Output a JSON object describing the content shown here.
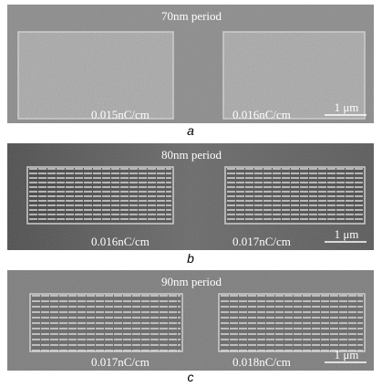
{
  "panels": [
    {
      "title": "70nm period",
      "labels": [
        "0.015nC/cm",
        "0.016nC/cm"
      ],
      "scale": "1 μm",
      "caption": "a"
    },
    {
      "title": "80nm period",
      "labels": [
        "0.016nC/cm",
        "0.017nC/cm"
      ],
      "scale": "1 μm",
      "caption": "b"
    },
    {
      "title": "90nm period",
      "labels": [
        "0.017nC/cm",
        "0.018nC/cm"
      ],
      "scale": "1 μm",
      "caption": "c"
    }
  ]
}
